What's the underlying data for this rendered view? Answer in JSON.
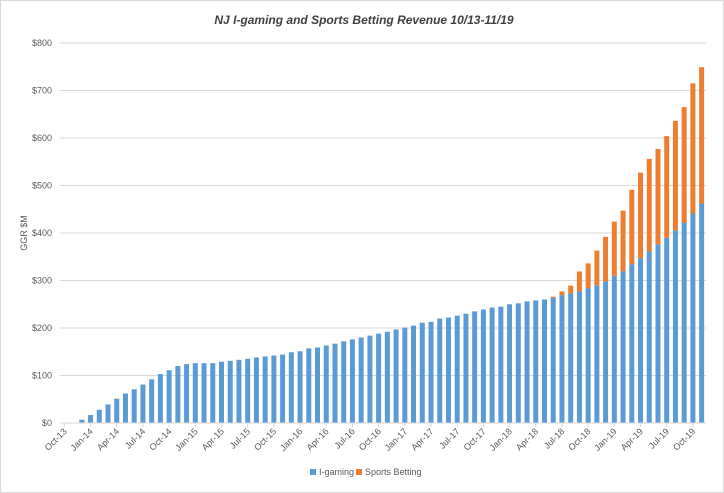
{
  "chart_data": {
    "type": "bar",
    "stacked": true,
    "title": "NJ I-gaming and Sports Betting Revenue 10/13-11/19",
    "xlabel": "",
    "ylabel": "GGR $M",
    "ylim": [
      0,
      800
    ],
    "yticks": [
      0,
      100,
      200,
      300,
      400,
      500,
      600,
      700,
      800
    ],
    "ytick_labels": [
      "$0",
      "$100",
      "$200",
      "$300",
      "$400",
      "$500",
      "$600",
      "$700",
      "$800"
    ],
    "grid": true,
    "legend_position": "bottom",
    "categories": [
      "Oct-13",
      "Nov-13",
      "Dec-13",
      "Jan-14",
      "Feb-14",
      "Mar-14",
      "Apr-14",
      "May-14",
      "Jun-14",
      "Jul-14",
      "Aug-14",
      "Sep-14",
      "Oct-14",
      "Nov-14",
      "Dec-14",
      "Jan-15",
      "Feb-15",
      "Mar-15",
      "Apr-15",
      "May-15",
      "Jun-15",
      "Jul-15",
      "Aug-15",
      "Sep-15",
      "Oct-15",
      "Nov-15",
      "Dec-15",
      "Jan-16",
      "Feb-16",
      "Mar-16",
      "Apr-16",
      "May-16",
      "Jun-16",
      "Jul-16",
      "Aug-16",
      "Sep-16",
      "Oct-16",
      "Nov-16",
      "Dec-16",
      "Jan-17",
      "Feb-17",
      "Mar-17",
      "Apr-17",
      "May-17",
      "Jun-17",
      "Jul-17",
      "Aug-17",
      "Sep-17",
      "Oct-17",
      "Nov-17",
      "Dec-17",
      "Jan-18",
      "Feb-18",
      "Mar-18",
      "Apr-18",
      "May-18",
      "Jun-18",
      "Jul-18",
      "Aug-18",
      "Sep-18",
      "Oct-18",
      "Nov-18",
      "Dec-18",
      "Jan-19",
      "Feb-19",
      "Mar-19",
      "Apr-19",
      "May-19",
      "Jun-19",
      "Jul-19",
      "Aug-19",
      "Sep-19",
      "Oct-19",
      "Nov-19"
    ],
    "xtick_labels": [
      "Oct-13",
      "Jan-14",
      "Apr-14",
      "Jul-14",
      "Oct-14",
      "Jan-15",
      "Apr-15",
      "Jul-15",
      "Oct-15",
      "Jan-16",
      "Apr-16",
      "Jul-16",
      "Oct-16",
      "Jan-17",
      "Apr-17",
      "Jul-17",
      "Oct-17",
      "Jan-18",
      "Apr-18",
      "Jul-18",
      "Oct-18",
      "Jan-19",
      "Apr-19",
      "Jul-19",
      "Oct-19"
    ],
    "series": [
      {
        "name": "I-gaming",
        "color": "#5B9BD5",
        "values": [
          0,
          0,
          7,
          17,
          28,
          39,
          51,
          62,
          71,
          81,
          92,
          103,
          111,
          120,
          124,
          126,
          126,
          126,
          129,
          131,
          133,
          135,
          138,
          140,
          142,
          144,
          149,
          151,
          157,
          159,
          163,
          167,
          172,
          176,
          180,
          184,
          188,
          192,
          197,
          201,
          205,
          211,
          213,
          220,
          222,
          226,
          230,
          235,
          239,
          243,
          245,
          250,
          252,
          256,
          258,
          260,
          264,
          269,
          273,
          277,
          284,
          290,
          298,
          310,
          319,
          334,
          347,
          361,
          376,
          390,
          406,
          422,
          441,
          462
        ]
      },
      {
        "name": "Sports Betting",
        "color": "#ED7D31",
        "values": [
          0,
          0,
          0,
          0,
          0,
          0,
          0,
          0,
          0,
          0,
          0,
          0,
          0,
          0,
          0,
          0,
          0,
          0,
          0,
          0,
          0,
          0,
          0,
          0,
          0,
          0,
          0,
          0,
          0,
          0,
          0,
          0,
          0,
          0,
          0,
          0,
          0,
          0,
          0,
          0,
          0,
          0,
          0,
          0,
          0,
          0,
          0,
          0,
          0,
          0,
          0,
          0,
          0,
          0,
          0,
          0,
          2,
          8,
          16,
          42,
          52,
          73,
          94,
          114,
          128,
          157,
          180,
          195,
          201,
          214,
          230,
          243,
          274,
          287
        ]
      }
    ]
  }
}
